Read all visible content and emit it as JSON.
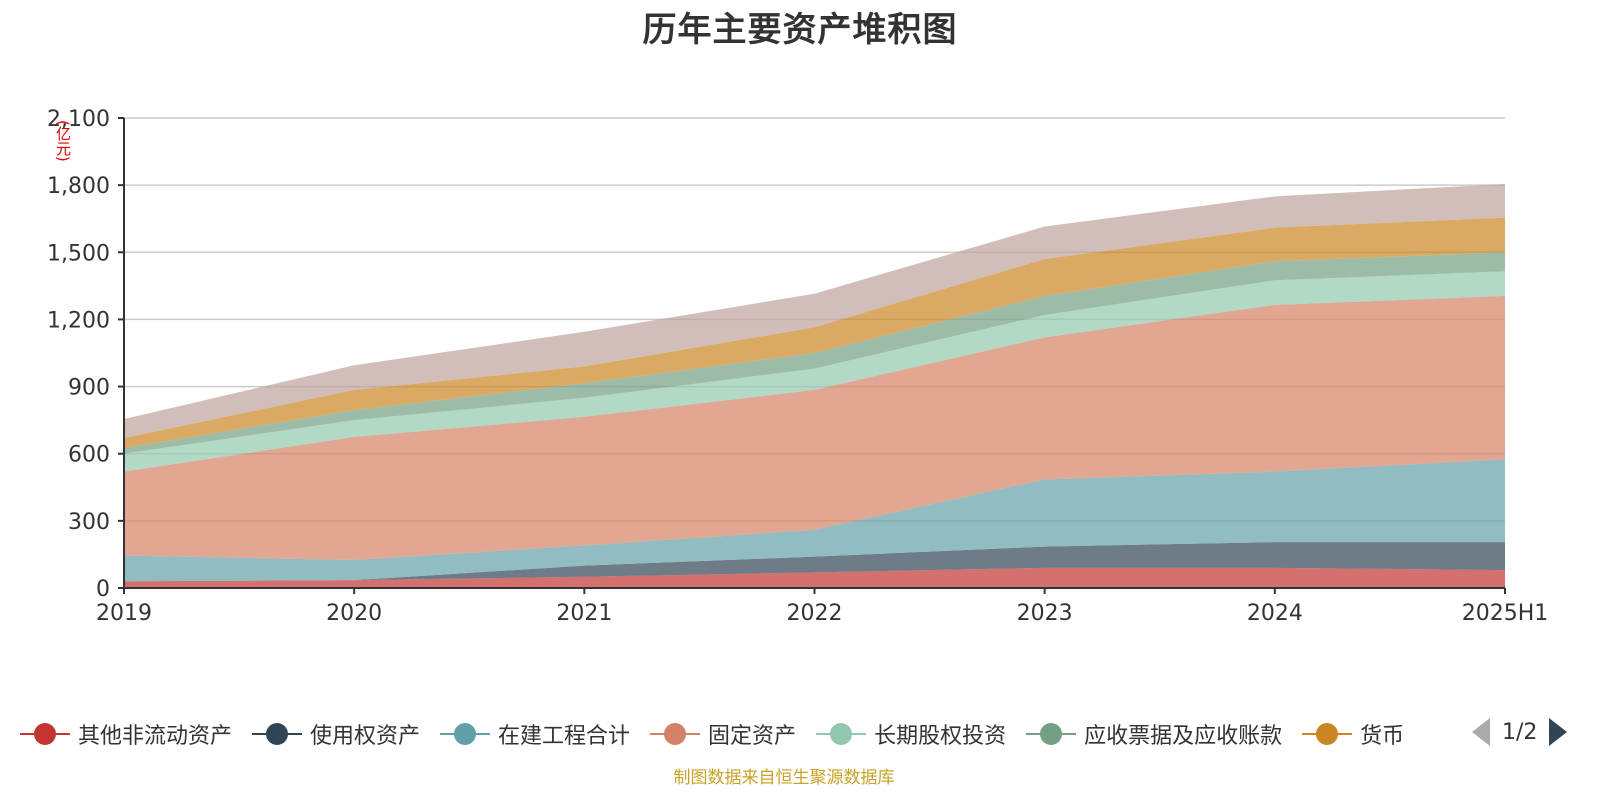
{
  "chart_data": {
    "type": "area",
    "stacked": true,
    "title": "历年主要资产堆积图",
    "ylabel": "(亿元)",
    "xlabel": "",
    "categories": [
      "2019",
      "2020",
      "2021",
      "2022",
      "2023",
      "2024",
      "2025H1"
    ],
    "ylim": [
      0,
      2100
    ],
    "yticks": [
      "0",
      "300",
      "600",
      "900",
      "1,200",
      "1,500",
      "1,800",
      "2,100"
    ],
    "yticks_values": [
      0,
      300,
      600,
      900,
      1200,
      1500,
      1800,
      2100
    ],
    "grid": true,
    "legend_position": "bottom",
    "series": [
      {
        "name": "其他非流动资产",
        "color": "#c23531",
        "values": [
          30,
          35,
          50,
          70,
          90,
          90,
          80
        ]
      },
      {
        "name": "使用权资产",
        "color": "#2f4554",
        "values": [
          0,
          0,
          50,
          70,
          95,
          115,
          125
        ]
      },
      {
        "name": "在建工程合计",
        "color": "#61a0a8",
        "values": [
          115,
          90,
          90,
          120,
          300,
          315,
          370
        ]
      },
      {
        "name": "固定资产",
        "color": "#d48265",
        "values": [
          375,
          550,
          575,
          625,
          635,
          745,
          730
        ]
      },
      {
        "name": "长期股权投资",
        "color": "#91c7ae",
        "values": [
          80,
          75,
          85,
          95,
          100,
          110,
          110
        ]
      },
      {
        "name": "应收票据及应收账款",
        "color": "#749f83",
        "values": [
          25,
          45,
          65,
          70,
          85,
          85,
          85
        ]
      },
      {
        "name": "货币",
        "color": "#ca8622",
        "values": [
          45,
          90,
          75,
          115,
          165,
          150,
          155
        ]
      },
      {
        "name": "",
        "color": "#bda29a",
        "values": [
          85,
          110,
          155,
          150,
          145,
          140,
          150
        ]
      }
    ]
  },
  "legend": {
    "page": "1/2"
  },
  "source_note": "制图数据来自恒生聚源数据库"
}
